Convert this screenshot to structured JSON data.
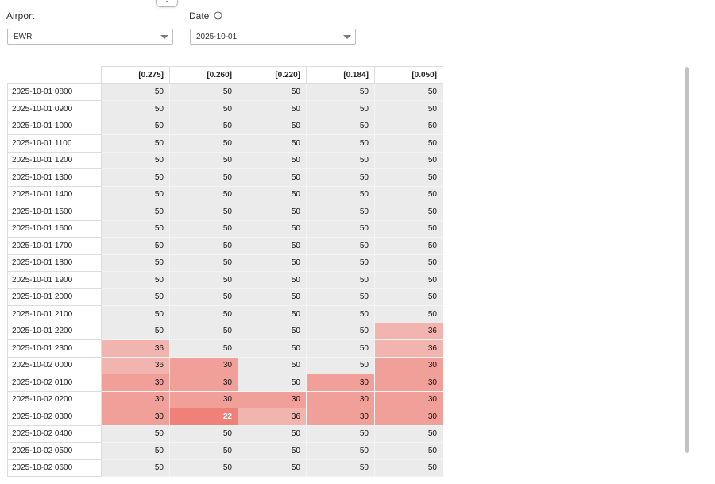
{
  "filters": {
    "airport": {
      "label": "Airport",
      "value": "EWR"
    },
    "date": {
      "label": "Date",
      "value": "2025-10-01"
    }
  },
  "colors": {
    "neutral": "#ebebeb",
    "v36": "#f2b4ae",
    "v30": "#f1a099",
    "v22": "#f08178",
    "low_text": "#ffffff"
  },
  "grid": {
    "columns": [
      "[0.275]",
      "[0.260]",
      "[0.220]",
      "[0.184]",
      "[0.050]"
    ],
    "rows": [
      {
        "label": "2025-10-01 0800",
        "values": [
          50,
          50,
          50,
          50,
          50
        ]
      },
      {
        "label": "2025-10-01 0900",
        "values": [
          50,
          50,
          50,
          50,
          50
        ]
      },
      {
        "label": "2025-10-01 1000",
        "values": [
          50,
          50,
          50,
          50,
          50
        ]
      },
      {
        "label": "2025-10-01 1100",
        "values": [
          50,
          50,
          50,
          50,
          50
        ]
      },
      {
        "label": "2025-10-01 1200",
        "values": [
          50,
          50,
          50,
          50,
          50
        ]
      },
      {
        "label": "2025-10-01 1300",
        "values": [
          50,
          50,
          50,
          50,
          50
        ]
      },
      {
        "label": "2025-10-01 1400",
        "values": [
          50,
          50,
          50,
          50,
          50
        ]
      },
      {
        "label": "2025-10-01 1500",
        "values": [
          50,
          50,
          50,
          50,
          50
        ]
      },
      {
        "label": "2025-10-01 1600",
        "values": [
          50,
          50,
          50,
          50,
          50
        ]
      },
      {
        "label": "2025-10-01 1700",
        "values": [
          50,
          50,
          50,
          50,
          50
        ]
      },
      {
        "label": "2025-10-01 1800",
        "values": [
          50,
          50,
          50,
          50,
          50
        ]
      },
      {
        "label": "2025-10-01 1900",
        "values": [
          50,
          50,
          50,
          50,
          50
        ]
      },
      {
        "label": "2025-10-01 2000",
        "values": [
          50,
          50,
          50,
          50,
          50
        ]
      },
      {
        "label": "2025-10-01 2100",
        "values": [
          50,
          50,
          50,
          50,
          50
        ]
      },
      {
        "label": "2025-10-01 2200",
        "values": [
          50,
          50,
          50,
          50,
          36
        ]
      },
      {
        "label": "2025-10-01 2300",
        "values": [
          36,
          50,
          50,
          50,
          36
        ]
      },
      {
        "label": "2025-10-02 0000",
        "values": [
          36,
          30,
          50,
          50,
          30
        ]
      },
      {
        "label": "2025-10-02 0100",
        "values": [
          30,
          30,
          50,
          30,
          30
        ]
      },
      {
        "label": "2025-10-02 0200",
        "values": [
          30,
          30,
          30,
          30,
          30
        ]
      },
      {
        "label": "2025-10-02 0300",
        "values": [
          30,
          22,
          36,
          30,
          30
        ]
      },
      {
        "label": "2025-10-02 0400",
        "values": [
          50,
          50,
          50,
          50,
          50
        ]
      },
      {
        "label": "2025-10-02 0500",
        "values": [
          50,
          50,
          50,
          50,
          50
        ]
      },
      {
        "label": "2025-10-02 0600",
        "values": [
          50,
          50,
          50,
          50,
          50
        ]
      }
    ]
  }
}
